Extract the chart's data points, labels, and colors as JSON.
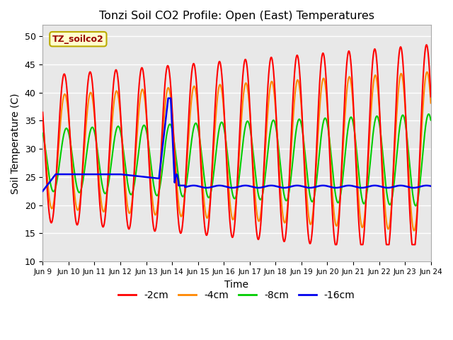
{
  "title": "Tonzi Soil CO2 Profile: Open (East) Temperatures",
  "xlabel": "Time",
  "ylabel": "Soil Temperature (C)",
  "ylim": [
    10,
    52
  ],
  "legend_label": "TZ_soilco2",
  "series_labels": [
    "-2cm",
    "-4cm",
    "-8cm",
    "-16cm"
  ],
  "series_colors": [
    "#ff0000",
    "#ff8800",
    "#00cc00",
    "#0000ee"
  ],
  "background_color": "#e8e8e8",
  "legend_box_color": "#ffffcc",
  "legend_box_edge": "#bbaa00",
  "grid_color": "#ffffff"
}
